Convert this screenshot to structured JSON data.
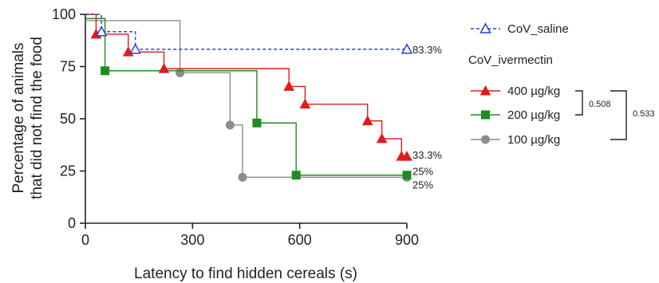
{
  "chart_data": {
    "type": "line",
    "subtype": "step",
    "xlabel": "Latency to find hidden cereals (s)",
    "ylabel_line1": "Percentage of animals",
    "ylabel_line2": "that did not find the food",
    "xlim": [
      0,
      900
    ],
    "ylim": [
      0,
      100
    ],
    "xticks": [
      0,
      300,
      600,
      900
    ],
    "yticks": [
      0,
      25,
      50,
      75,
      100
    ],
    "grid": false,
    "legend_position": "right",
    "legend_group_label": "CoV_ivermectin",
    "series": [
      {
        "name": "CoV_saline",
        "color": "#2b3fd6",
        "marker": "open-triangle",
        "line_style": "dashed",
        "steps": [
          [
            0,
            100
          ],
          [
            45,
            91.7
          ],
          [
            140,
            83.3
          ],
          [
            900,
            83.3
          ]
        ],
        "points": [
          [
            45,
            91.7
          ],
          [
            140,
            83.3
          ],
          [
            900,
            83.3
          ]
        ],
        "end_label": "83.3%"
      },
      {
        "name": "400 µg/kg",
        "color": "#e01b1b",
        "marker": "filled-triangle",
        "line_style": "solid",
        "steps": [
          [
            0,
            100
          ],
          [
            30,
            90.5
          ],
          [
            120,
            82
          ],
          [
            220,
            74
          ],
          [
            570,
            65.5
          ],
          [
            615,
            57
          ],
          [
            790,
            49
          ],
          [
            830,
            40.5
          ],
          [
            885,
            32
          ],
          [
            900,
            32
          ]
        ],
        "points": [
          [
            30,
            90.5
          ],
          [
            120,
            82
          ],
          [
            220,
            74
          ],
          [
            570,
            65.5
          ],
          [
            615,
            57
          ],
          [
            790,
            49
          ],
          [
            830,
            40.5
          ],
          [
            885,
            32
          ],
          [
            900,
            32
          ]
        ],
        "end_label": "33.3%"
      },
      {
        "name": "200 µg/kg",
        "color": "#1f8c1f",
        "marker": "square",
        "line_style": "solid",
        "steps": [
          [
            0,
            98
          ],
          [
            55,
            73
          ],
          [
            480,
            48
          ],
          [
            590,
            23
          ],
          [
            900,
            23
          ]
        ],
        "points": [
          [
            55,
            73
          ],
          [
            480,
            48
          ],
          [
            590,
            23
          ],
          [
            900,
            23
          ]
        ],
        "end_label": "25%"
      },
      {
        "name": "100 µg/kg",
        "color": "#8c8c8c",
        "marker": "circle",
        "line_style": "solid",
        "steps": [
          [
            0,
            97
          ],
          [
            265,
            72
          ],
          [
            405,
            47
          ],
          [
            440,
            22
          ],
          [
            900,
            22
          ]
        ],
        "points": [
          [
            265,
            72
          ],
          [
            405,
            47
          ],
          [
            440,
            22
          ],
          [
            900,
            22
          ]
        ],
        "end_label": "25%"
      }
    ],
    "comparisons": [
      {
        "series": [
          "400 µg/kg",
          "200 µg/kg"
        ],
        "label": "0.508"
      },
      {
        "series": [
          "400 µg/kg",
          "100 µg/kg"
        ],
        "label": "0.533"
      }
    ]
  }
}
